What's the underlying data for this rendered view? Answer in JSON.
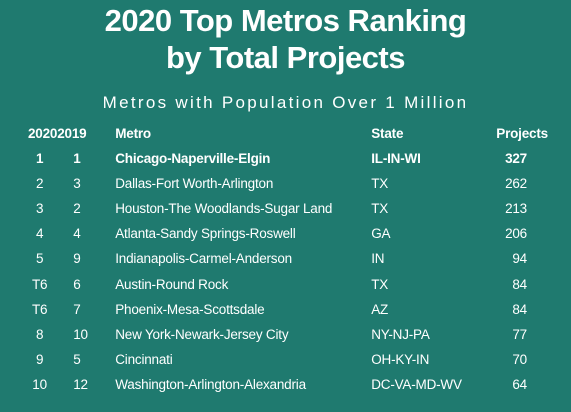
{
  "header": {
    "title_line1": "2020 Top Metros Ranking",
    "title_line2": "by Total Projects",
    "subtitle": "Metros with Population Over 1 Million"
  },
  "table": {
    "columns": [
      "2020",
      "2019",
      "Metro",
      "State",
      "Projects"
    ],
    "rows": [
      {
        "rank2020": "1",
        "rank2019": "1",
        "metro": "Chicago-Naperville-Elgin",
        "state": "IL-IN-WI",
        "projects": "327"
      },
      {
        "rank2020": "2",
        "rank2019": "3",
        "metro": "Dallas-Fort Worth-Arlington",
        "state": "TX",
        "projects": "262"
      },
      {
        "rank2020": "3",
        "rank2019": "2",
        "metro": "Houston-The Woodlands-Sugar Land",
        "state": "TX",
        "projects": "213"
      },
      {
        "rank2020": "4",
        "rank2019": "4",
        "metro": "Atlanta-Sandy Springs-Roswell",
        "state": "GA",
        "projects": "206"
      },
      {
        "rank2020": "5",
        "rank2019": "9",
        "metro": "Indianapolis-Carmel-Anderson",
        "state": "IN",
        "projects": "94"
      },
      {
        "rank2020": "T6",
        "rank2019": "6",
        "metro": "Austin-Round Rock",
        "state": "TX",
        "projects": "84"
      },
      {
        "rank2020": "T6",
        "rank2019": "7",
        "metro": "Phoenix-Mesa-Scottsdale",
        "state": "AZ",
        "projects": "84"
      },
      {
        "rank2020": "8",
        "rank2019": "10",
        "metro": "New York-Newark-Jersey City",
        "state": "NY-NJ-PA",
        "projects": "77"
      },
      {
        "rank2020": "9",
        "rank2019": "5",
        "metro": "Cincinnati",
        "state": "OH-KY-IN",
        "projects": "70"
      },
      {
        "rank2020": "10",
        "rank2019": "12",
        "metro": "Washington-Arlington-Alexandria",
        "state": "DC-VA-MD-WV",
        "projects": "64"
      }
    ]
  },
  "colors": {
    "background": "#1f7a6f",
    "text": "#ffffff"
  }
}
